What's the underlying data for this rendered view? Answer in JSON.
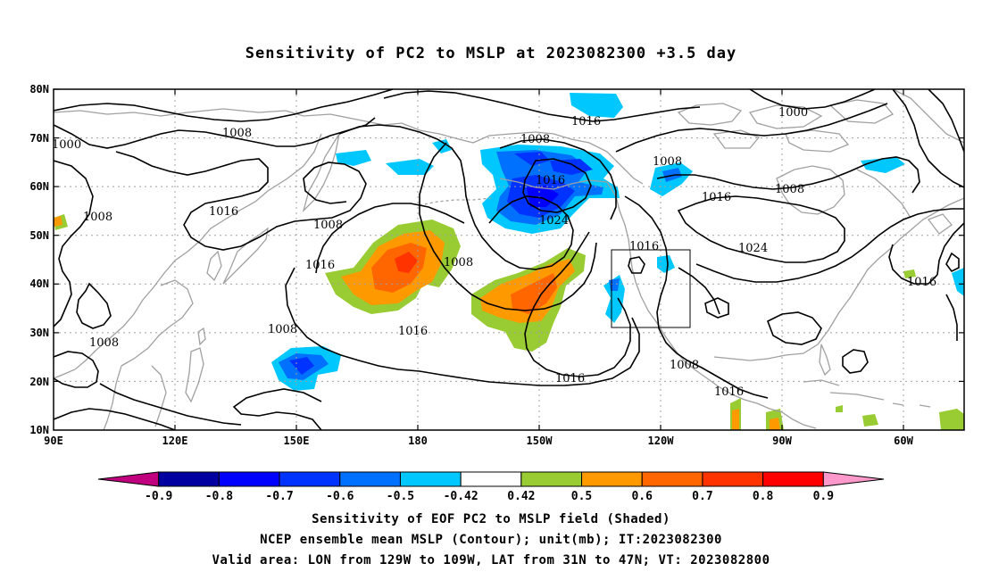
{
  "title": "Sensitivity of PC2 to MSLP at 2023082300 +3.5 day",
  "lat_labels": [
    "80N",
    "70N",
    "60N",
    "50N",
    "40N",
    "30N",
    "20N",
    "10N"
  ],
  "lon_labels": [
    "90E",
    "120E",
    "150E",
    "180",
    "150W",
    "120W",
    "90W",
    "60W"
  ],
  "contour_labels": [
    {
      "text": "1000",
      "key": "c1"
    },
    {
      "text": "1008",
      "key": "c2"
    },
    {
      "text": "1016",
      "key": "c3"
    },
    {
      "text": "1008",
      "key": "c4"
    },
    {
      "text": "1000",
      "key": "c5"
    },
    {
      "text": "1008",
      "key": "c6"
    },
    {
      "text": "1016",
      "key": "c7"
    },
    {
      "text": "1008",
      "key": "c8"
    },
    {
      "text": "1008",
      "key": "c9"
    },
    {
      "text": "1016",
      "key": "c10"
    },
    {
      "text": "1008",
      "key": "c11"
    },
    {
      "text": "1016",
      "key": "c12"
    },
    {
      "text": "1024",
      "key": "c13"
    },
    {
      "text": "1008",
      "key": "c14"
    },
    {
      "text": "1016",
      "key": "c15"
    },
    {
      "text": "1008",
      "key": "c16"
    },
    {
      "text": "1016",
      "key": "c17"
    },
    {
      "text": "1016",
      "key": "c18"
    },
    {
      "text": "1016",
      "key": "c19"
    },
    {
      "text": "1024",
      "key": "c20"
    },
    {
      "text": "1016",
      "key": "c21"
    },
    {
      "text": "1008",
      "key": "c22"
    },
    {
      "text": "1016",
      "key": "c23"
    },
    {
      "text": "1008",
      "key": "c24"
    },
    {
      "text": "1016",
      "key": "c25"
    }
  ],
  "colorbar": {
    "labels": [
      "-0.9",
      "-0.8",
      "-0.7",
      "-0.6",
      "-0.5",
      "-0.42",
      "0.42",
      "0.5",
      "0.6",
      "0.7",
      "0.8",
      "0.9"
    ],
    "colors": [
      "#c0007f",
      "#0000a0",
      "#0000ff",
      "#0033ff",
      "#0070ff",
      "#00c8ff",
      "#ffffff",
      "#99cc33",
      "#ff9900",
      "#ff6600",
      "#ff3300",
      "#ff0000",
      "#ff99cc"
    ]
  },
  "colors": {
    "contour": "#000000",
    "coastline": "#a0a0a0",
    "grid": "#a0a0a0"
  },
  "valid_area": {
    "lon_from": "129W",
    "lon_to": "109W",
    "lat_from": "31N",
    "lat_to": "47N"
  },
  "captions": [
    "Sensitivity of EOF PC2 to MSLP field (Shaded)",
    "NCEP ensemble mean MSLP (Contour); unit(mb); IT:2023082300",
    "Valid area: LON from 129W to 109W, LAT from 31N to 47N; VT: 2023082800"
  ]
}
